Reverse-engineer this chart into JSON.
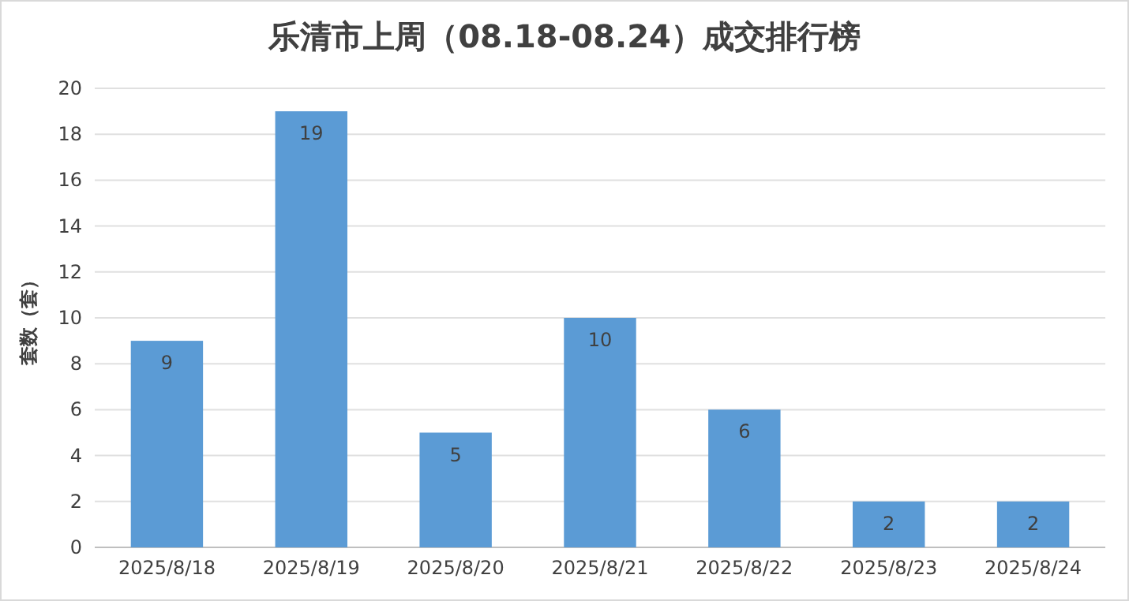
{
  "chart_data": {
    "type": "bar",
    "title": "乐清市上周（08.18-08.24）成交排行榜",
    "ylabel": "套数（套）",
    "categories": [
      "2025/8/18",
      "2025/8/19",
      "2025/8/20",
      "2025/8/21",
      "2025/8/22",
      "2025/8/23",
      "2025/8/24"
    ],
    "values": [
      9,
      19,
      5,
      10,
      6,
      2,
      2
    ],
    "color": "#5b9bd5",
    "ylim": [
      0,
      20
    ],
    "yticks": [
      0,
      2,
      4,
      6,
      8,
      10,
      12,
      14,
      16,
      18,
      20
    ],
    "grid": "y",
    "data_labels": true
  }
}
